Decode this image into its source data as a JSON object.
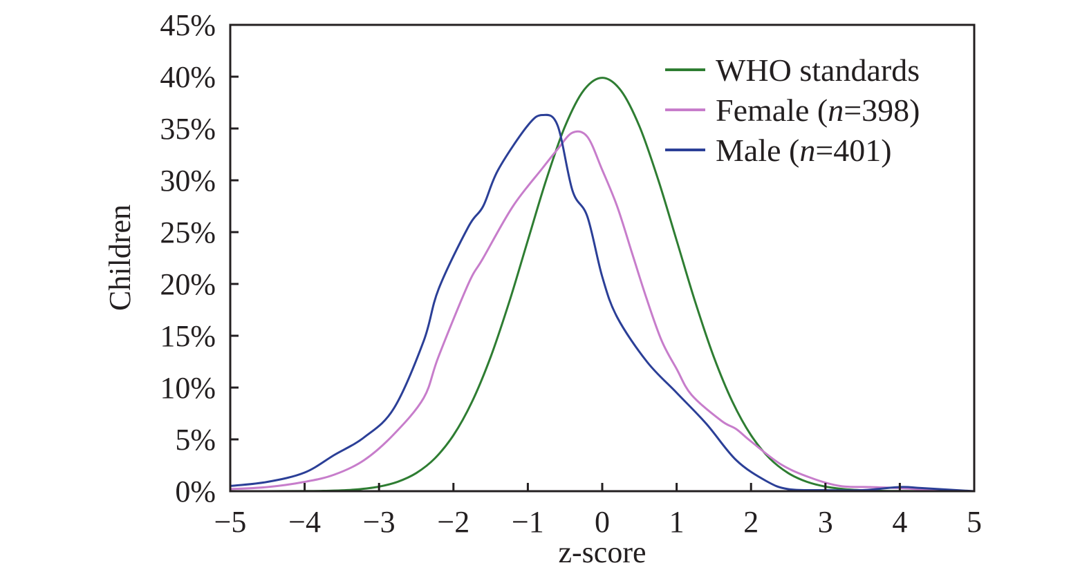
{
  "chart_data": {
    "type": "line",
    "title": "",
    "xlabel": "z-score",
    "ylabel": "Children",
    "xlim": [
      -5,
      5
    ],
    "ylim": [
      0,
      45
    ],
    "xticks": [
      -5,
      -4,
      -3,
      -2,
      -1,
      0,
      1,
      2,
      3,
      4,
      5
    ],
    "xtick_labels": [
      "−5",
      "−4",
      "−3",
      "−2",
      "−1",
      "0",
      "1",
      "2",
      "3",
      "4",
      "5"
    ],
    "yticks": [
      0,
      5,
      10,
      15,
      20,
      25,
      30,
      35,
      40,
      45
    ],
    "ytick_labels": [
      "0%",
      "5%",
      "10%",
      "15%",
      "20%",
      "25%",
      "30%",
      "35%",
      "40%",
      "45%"
    ],
    "grid": false,
    "legend_position": "top-right",
    "series": [
      {
        "name": "WHO standards",
        "legend_label": "WHO standards",
        "color": "#2e7d32",
        "x": [
          -5,
          -4.5,
          -4,
          -3.75,
          -3.5,
          -3.25,
          -3,
          -2.75,
          -2.5,
          -2.25,
          -2,
          -1.75,
          -1.5,
          -1.25,
          -1,
          -0.75,
          -0.5,
          -0.25,
          0,
          0.25,
          0.5,
          0.75,
          1,
          1.25,
          1.5,
          1.75,
          2,
          2.25,
          2.5,
          2.75,
          3,
          3.25,
          3.5,
          3.75,
          4,
          4.5,
          5
        ],
        "y": [
          0,
          0.002,
          0.013,
          0.035,
          0.087,
          0.2,
          0.44,
          0.91,
          1.75,
          3.17,
          5.4,
          8.63,
          12.95,
          18.26,
          24.2,
          30.11,
          35.21,
          38.67,
          39.89,
          38.67,
          35.21,
          30.11,
          24.2,
          18.26,
          12.95,
          8.63,
          5.4,
          3.17,
          1.75,
          0.91,
          0.44,
          0.2,
          0.087,
          0.035,
          0.013,
          0.002,
          0
        ]
      },
      {
        "name": "Female",
        "legend_label": "Female (",
        "legend_n_symbol": "n",
        "legend_n_value": "=398)",
        "color": "#c77dcb",
        "x": [
          -5,
          -4.5,
          -4,
          -3.6,
          -3.2,
          -2.8,
          -2.4,
          -2.2,
          -1.8,
          -1.6,
          -1.2,
          -0.8,
          -0.6,
          -0.4,
          -0.2,
          0,
          0.2,
          0.4,
          0.6,
          0.8,
          1.0,
          1.2,
          1.6,
          1.8,
          2.0,
          2.4,
          2.8,
          3.2,
          3.6,
          4.0,
          4.5,
          5
        ],
        "y": [
          0.2,
          0.4,
          0.9,
          1.6,
          3.0,
          5.5,
          9.0,
          13.0,
          20.0,
          22.5,
          27.5,
          31.2,
          33.0,
          34.6,
          34.2,
          31.0,
          27.5,
          23.0,
          18.5,
          14.5,
          11.8,
          9.3,
          6.8,
          6.0,
          4.8,
          2.6,
          1.3,
          0.5,
          0.4,
          0.3,
          0.1,
          0
        ]
      },
      {
        "name": "Male",
        "legend_label": "Male (",
        "legend_n_symbol": "n",
        "legend_n_value": "=401)",
        "color": "#2b3f97",
        "x": [
          -5,
          -4.5,
          -4,
          -3.6,
          -3.2,
          -2.8,
          -2.4,
          -2.2,
          -1.8,
          -1.6,
          -1.4,
          -1.0,
          -0.8,
          -0.6,
          -0.4,
          -0.2,
          0,
          0.2,
          0.6,
          1.0,
          1.4,
          1.8,
          2.2,
          2.5,
          3.0,
          3.5,
          4.0,
          4.3,
          5
        ],
        "y": [
          0.5,
          0.9,
          1.8,
          3.5,
          5.2,
          8.0,
          14.5,
          19.5,
          25.5,
          27.5,
          31.0,
          35.3,
          36.3,
          35.3,
          29.0,
          26.5,
          20.7,
          16.8,
          12.5,
          9.5,
          6.5,
          3.0,
          1.0,
          0.2,
          0.1,
          0.1,
          0.4,
          0.3,
          0
        ]
      }
    ]
  }
}
